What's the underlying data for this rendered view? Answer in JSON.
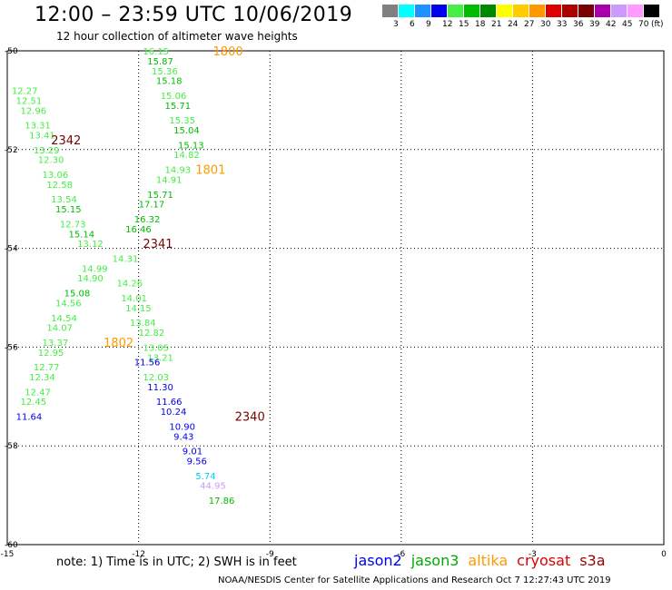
{
  "header": {
    "title": "12:00 – 23:59 UTC 10/06/2019",
    "subtitle": "12 hour collection of altimeter wave heights"
  },
  "legend": {
    "unit_label": "(ft)",
    "bins": [
      {
        "color": "#808080",
        "label": "3"
      },
      {
        "color": "#00ffff",
        "label": "6"
      },
      {
        "color": "#1e90ff",
        "label": "9"
      },
      {
        "color": "#0000ee",
        "label": "12"
      },
      {
        "color": "#44ee44",
        "label": "15"
      },
      {
        "color": "#00bb00",
        "label": "18"
      },
      {
        "color": "#008800",
        "label": "21"
      },
      {
        "color": "#ffff00",
        "label": "24"
      },
      {
        "color": "#ffcc00",
        "label": "27"
      },
      {
        "color": "#ff9900",
        "label": "30"
      },
      {
        "color": "#dd0000",
        "label": "33"
      },
      {
        "color": "#aa0000",
        "label": "36"
      },
      {
        "color": "#770000",
        "label": "39"
      },
      {
        "color": "#aa00aa",
        "label": "42"
      },
      {
        "color": "#cc99ff",
        "label": "45"
      },
      {
        "color": "#ff99ff",
        "label": "70"
      },
      {
        "color": "#000000",
        "label": ""
      }
    ]
  },
  "map": {
    "lon_range": [
      -15,
      0
    ],
    "lat_range": [
      -60,
      -50
    ],
    "lon_ticks": [
      "-15",
      "-12",
      "-9",
      "-6",
      "-3",
      "0"
    ],
    "lat_ticks": [
      "-50",
      "-52",
      "-54",
      "-56",
      "-58",
      "-60"
    ],
    "track_labels": [
      {
        "lon": -14.0,
        "lat": -51.8,
        "text": "2342",
        "color": "#770000"
      },
      {
        "lon": -10.3,
        "lat": -50.0,
        "text": "1800",
        "color": "#ff9900"
      },
      {
        "lon": -10.7,
        "lat": -52.4,
        "text": "1801",
        "color": "#ff9900"
      },
      {
        "lon": -11.9,
        "lat": -53.9,
        "text": "2341",
        "color": "#770000"
      },
      {
        "lon": -12.8,
        "lat": -55.9,
        "text": "1802",
        "color": "#ff9900"
      },
      {
        "lon": -9.8,
        "lat": -57.4,
        "text": "2340",
        "color": "#770000"
      }
    ],
    "swh_points": [
      {
        "lon": -11.9,
        "lat": -50.0,
        "value": "16.15",
        "color": "#44ee44"
      },
      {
        "lon": -11.8,
        "lat": -50.2,
        "value": "15.87",
        "color": "#00bb00"
      },
      {
        "lon": -11.7,
        "lat": -50.4,
        "value": "15.36",
        "color": "#44ee44"
      },
      {
        "lon": -11.6,
        "lat": -50.6,
        "value": "15.18",
        "color": "#00bb00"
      },
      {
        "lon": -11.5,
        "lat": -50.9,
        "value": "15.06",
        "color": "#44ee44"
      },
      {
        "lon": -11.4,
        "lat": -51.1,
        "value": "15.71",
        "color": "#00bb00"
      },
      {
        "lon": -11.3,
        "lat": -51.4,
        "value": "15.35",
        "color": "#44ee44"
      },
      {
        "lon": -11.2,
        "lat": -51.6,
        "value": "15.04",
        "color": "#00bb00"
      },
      {
        "lon": -11.1,
        "lat": -51.9,
        "value": "15.13",
        "color": "#00bb00"
      },
      {
        "lon": -11.2,
        "lat": -52.1,
        "value": "14.82",
        "color": "#44ee44"
      },
      {
        "lon": -11.4,
        "lat": -52.4,
        "value": "14.93",
        "color": "#44ee44"
      },
      {
        "lon": -11.6,
        "lat": -52.6,
        "value": "14.91",
        "color": "#44ee44"
      },
      {
        "lon": -11.8,
        "lat": -52.9,
        "value": "15.71",
        "color": "#00bb00"
      },
      {
        "lon": -12.0,
        "lat": -53.1,
        "value": "17.17",
        "color": "#00bb00"
      },
      {
        "lon": -12.1,
        "lat": -53.4,
        "value": "16.32",
        "color": "#00bb00"
      },
      {
        "lon": -12.3,
        "lat": -53.6,
        "value": "16.46",
        "color": "#00bb00"
      },
      {
        "lon": -12.6,
        "lat": -54.2,
        "value": "14.31",
        "color": "#44ee44"
      },
      {
        "lon": -12.5,
        "lat": -54.7,
        "value": "14.26",
        "color": "#44ee44"
      },
      {
        "lon": -12.4,
        "lat": -55.0,
        "value": "14.01",
        "color": "#44ee44"
      },
      {
        "lon": -12.3,
        "lat": -55.2,
        "value": "14.15",
        "color": "#44ee44"
      },
      {
        "lon": -12.2,
        "lat": -55.5,
        "value": "13.84",
        "color": "#44ee44"
      },
      {
        "lon": -12.0,
        "lat": -55.7,
        "value": "12.82",
        "color": "#44ee44"
      },
      {
        "lon": -11.9,
        "lat": -56.0,
        "value": "13.05",
        "color": "#44ee44"
      },
      {
        "lon": -11.8,
        "lat": -56.2,
        "value": "13.21",
        "color": "#44ee44"
      },
      {
        "lon": -14.9,
        "lat": -50.8,
        "value": "12.27",
        "color": "#44ee44"
      },
      {
        "lon": -14.8,
        "lat": -51.0,
        "value": "12.51",
        "color": "#44ee44"
      },
      {
        "lon": -14.7,
        "lat": -51.2,
        "value": "12.96",
        "color": "#44ee44"
      },
      {
        "lon": -14.6,
        "lat": -51.5,
        "value": "13.31",
        "color": "#44ee44"
      },
      {
        "lon": -14.5,
        "lat": -51.7,
        "value": "13.41",
        "color": "#44ee44"
      },
      {
        "lon": -14.4,
        "lat": -52.0,
        "value": "13.29",
        "color": "#44ee44"
      },
      {
        "lon": -14.3,
        "lat": -52.2,
        "value": "12.30",
        "color": "#44ee44"
      },
      {
        "lon": -14.2,
        "lat": -52.5,
        "value": "13.06",
        "color": "#44ee44"
      },
      {
        "lon": -14.1,
        "lat": -52.7,
        "value": "12.58",
        "color": "#44ee44"
      },
      {
        "lon": -14.0,
        "lat": -53.0,
        "value": "13.54",
        "color": "#44ee44"
      },
      {
        "lon": -13.9,
        "lat": -53.2,
        "value": "15.15",
        "color": "#00bb00"
      },
      {
        "lon": -13.8,
        "lat": -53.5,
        "value": "12.73",
        "color": "#44ee44"
      },
      {
        "lon": -13.6,
        "lat": -53.7,
        "value": "15.14",
        "color": "#00bb00"
      },
      {
        "lon": -13.4,
        "lat": -53.9,
        "value": "13.12",
        "color": "#44ee44"
      },
      {
        "lon": -13.3,
        "lat": -54.4,
        "value": "14.99",
        "color": "#44ee44"
      },
      {
        "lon": -13.4,
        "lat": -54.6,
        "value": "14.90",
        "color": "#44ee44"
      },
      {
        "lon": -13.7,
        "lat": -54.9,
        "value": "15.08",
        "color": "#00bb00"
      },
      {
        "lon": -13.9,
        "lat": -55.1,
        "value": "14.56",
        "color": "#44ee44"
      },
      {
        "lon": -14.0,
        "lat": -55.4,
        "value": "14.54",
        "color": "#44ee44"
      },
      {
        "lon": -14.1,
        "lat": -55.6,
        "value": "14.07",
        "color": "#44ee44"
      },
      {
        "lon": -14.2,
        "lat": -55.9,
        "value": "13.37",
        "color": "#44ee44"
      },
      {
        "lon": -14.3,
        "lat": -56.1,
        "value": "12.95",
        "color": "#44ee44"
      },
      {
        "lon": -14.4,
        "lat": -56.4,
        "value": "12.77",
        "color": "#44ee44"
      },
      {
        "lon": -14.5,
        "lat": -56.6,
        "value": "12.34",
        "color": "#44ee44"
      },
      {
        "lon": -14.6,
        "lat": -56.9,
        "value": "12.47",
        "color": "#44ee44"
      },
      {
        "lon": -14.7,
        "lat": -57.1,
        "value": "12.45",
        "color": "#44ee44"
      },
      {
        "lon": -14.8,
        "lat": -57.4,
        "value": "11.64",
        "color": "#0000ee"
      },
      {
        "lon": -12.1,
        "lat": -56.3,
        "value": "11.56",
        "color": "#0000ee"
      },
      {
        "lon": -11.9,
        "lat": -56.6,
        "value": "12.03",
        "color": "#44ee44"
      },
      {
        "lon": -11.8,
        "lat": -56.8,
        "value": "11.30",
        "color": "#0000ee"
      },
      {
        "lon": -11.6,
        "lat": -57.1,
        "value": "11.66",
        "color": "#0000ee"
      },
      {
        "lon": -11.5,
        "lat": -57.3,
        "value": "10.24",
        "color": "#0000ee"
      },
      {
        "lon": -11.3,
        "lat": -57.6,
        "value": "10.90",
        "color": "#0000ee"
      },
      {
        "lon": -11.2,
        "lat": -57.8,
        "value": "9.43",
        "color": "#0000ee"
      },
      {
        "lon": -11.0,
        "lat": -58.1,
        "value": "9.01",
        "color": "#0000ee"
      },
      {
        "lon": -10.9,
        "lat": -58.3,
        "value": "9.56",
        "color": "#0000ee"
      },
      {
        "lon": -10.7,
        "lat": -58.6,
        "value": "5.74",
        "color": "#00ccff"
      },
      {
        "lon": -10.6,
        "lat": -58.8,
        "value": "44.95",
        "color": "#cc99ff"
      },
      {
        "lon": -10.4,
        "lat": -59.1,
        "value": "17.86",
        "color": "#00bb00"
      }
    ]
  },
  "footer": {
    "note": "note:  1) Time is in UTC;  2) SWH is in feet",
    "satellites": [
      {
        "name": "jason2",
        "color": "#0000ee"
      },
      {
        "name": "jason3",
        "color": "#00aa00"
      },
      {
        "name": "altika",
        "color": "#ff9900"
      },
      {
        "name": "cryosat",
        "color": "#dd0000"
      },
      {
        "name": "s3a",
        "color": "#990000"
      }
    ],
    "credit": "NOAA/NESDIS Center for Satellite Applications and Research    Oct  7 12:27:43 UTC 2019"
  }
}
